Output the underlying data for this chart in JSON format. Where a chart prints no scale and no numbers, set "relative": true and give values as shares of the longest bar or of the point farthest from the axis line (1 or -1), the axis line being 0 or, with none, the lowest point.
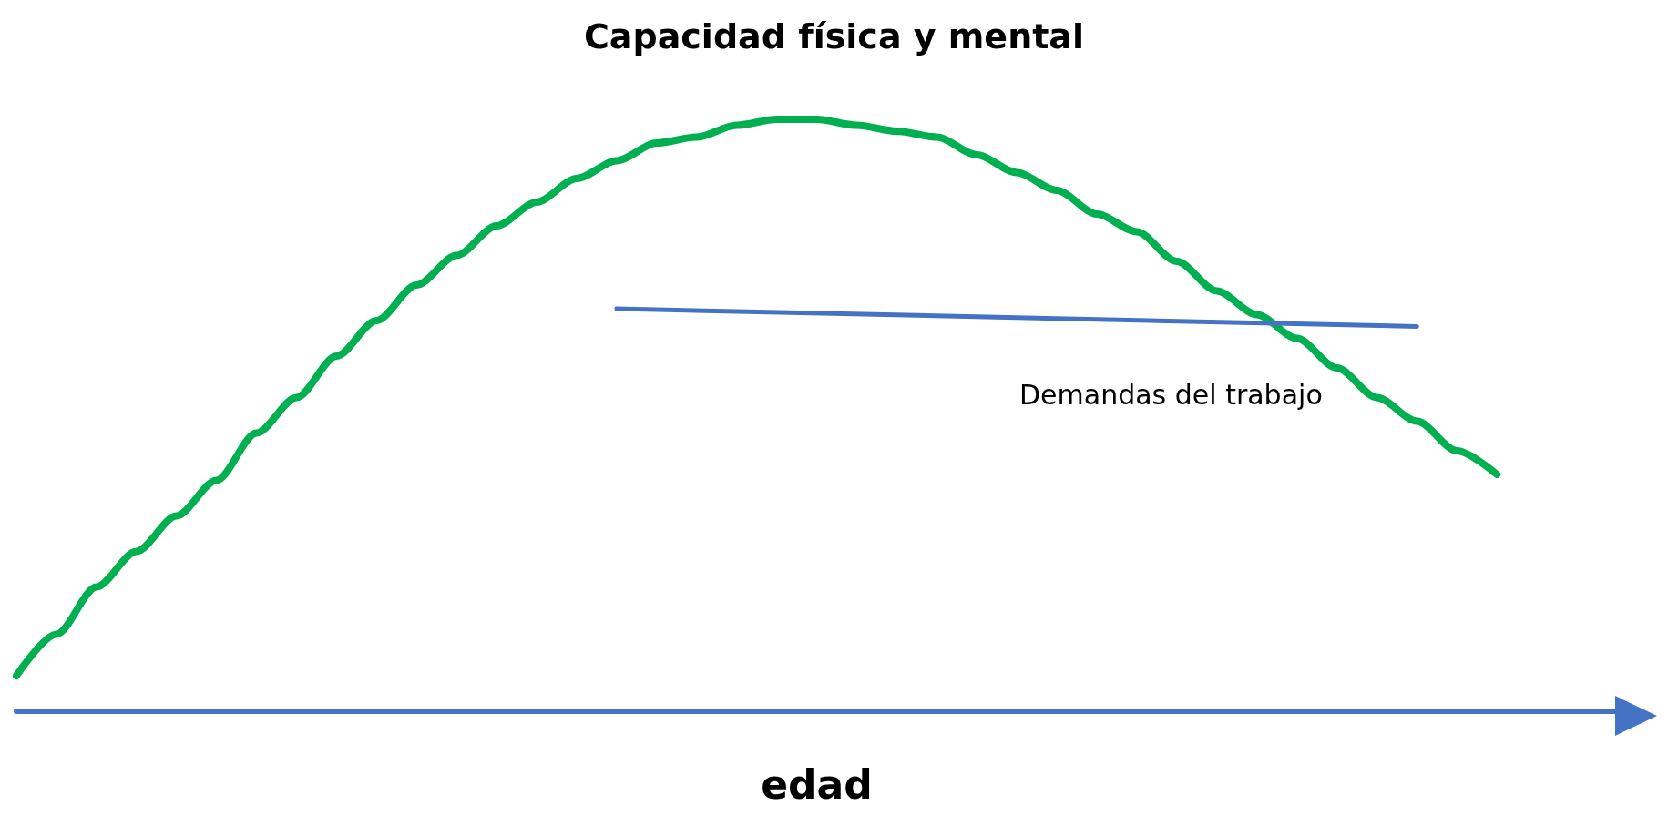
{
  "chart_data": {
    "type": "line",
    "title": "Capacidad física y mental",
    "xlabel": "edad",
    "relative": true,
    "marker": "none",
    "categories": [
      null,
      null,
      null,
      null,
      null,
      null,
      null,
      null,
      null,
      null,
      null,
      null,
      null,
      null,
      null,
      null,
      null,
      null,
      null,
      null,
      null,
      null,
      null,
      null,
      null,
      null,
      null,
      null,
      null,
      null,
      null,
      null,
      null,
      null,
      null,
      null,
      null,
      null,
      null,
      null,
      null
    ],
    "series": [
      {
        "color": "#00b050",
        "values": [
          0.06,
          0.13,
          0.21,
          0.27,
          0.33,
          0.39,
          0.47,
          0.53,
          0.6,
          0.66,
          0.72,
          0.77,
          0.82,
          0.86,
          0.9,
          0.93,
          0.96,
          0.97,
          0.99,
          1.0,
          1.0,
          0.99,
          0.98,
          0.97,
          0.94,
          0.91,
          0.88,
          0.84,
          0.81,
          0.76,
          0.71,
          0.67,
          0.63,
          0.58,
          0.53,
          0.49,
          0.44,
          0.4,
          null,
          null,
          null
        ]
      },
      {
        "name": "Demandas del trabajo",
        "color": "#4472c4",
        "values": [
          null,
          null,
          null,
          null,
          null,
          null,
          null,
          null,
          null,
          null,
          null,
          null,
          null,
          null,
          null,
          0.68,
          null,
          null,
          null,
          null,
          null,
          null,
          null,
          null,
          null,
          null,
          null,
          null,
          null,
          null,
          null,
          null,
          null,
          null,
          null,
          0.65,
          null,
          null,
          null,
          null,
          null
        ]
      }
    ]
  }
}
